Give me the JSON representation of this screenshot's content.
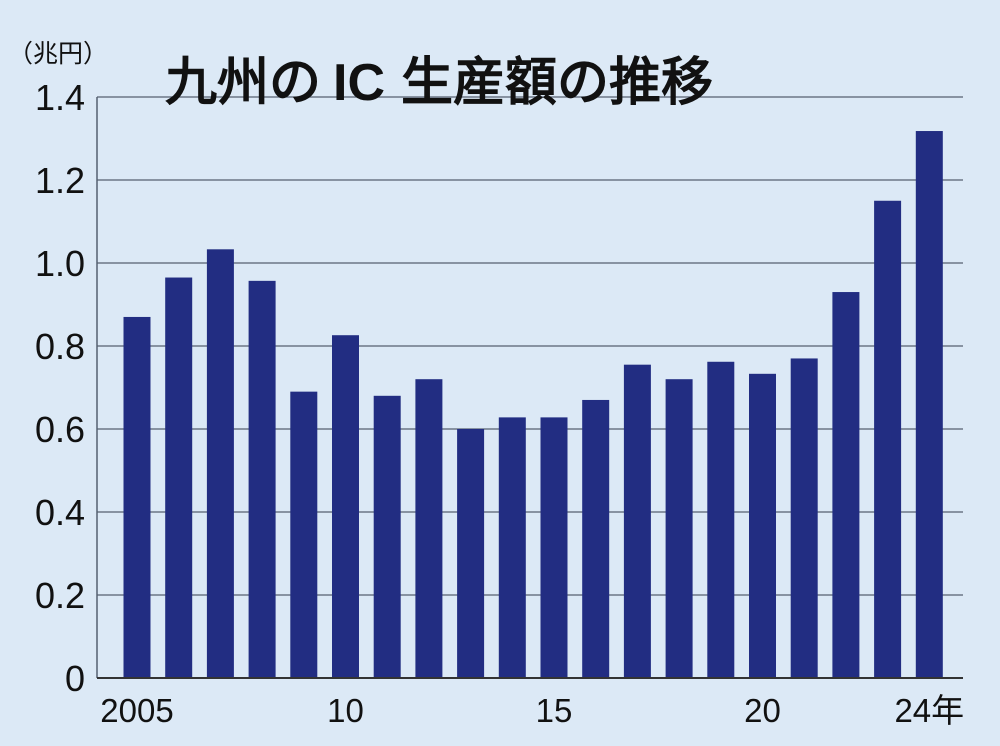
{
  "chart_data": {
    "type": "bar",
    "title": "九州のIC生産額の推移",
    "title_parts": [
      "九州の",
      "IC",
      "生産額の推移"
    ],
    "ylabel": "（兆円）",
    "ylim": [
      0,
      1.4
    ],
    "y_ticks": [
      "0",
      "0.2",
      "0.4",
      "0.6",
      "0.8",
      "1.0",
      "1.2",
      "1.4"
    ],
    "categories": [
      "2005",
      "2006",
      "2007",
      "2008",
      "2009",
      "2010",
      "2011",
      "2012",
      "2013",
      "2014",
      "2015",
      "2016",
      "2017",
      "2018",
      "2019",
      "2020",
      "2021",
      "2022",
      "2023",
      "2024"
    ],
    "x_tick_labels": [
      {
        "category": "2005",
        "label": "2005"
      },
      {
        "category": "2010",
        "label": "10"
      },
      {
        "category": "2015",
        "label": "15"
      },
      {
        "category": "2020",
        "label": "20"
      },
      {
        "category": "2024",
        "label": "24年"
      }
    ],
    "values": [
      0.87,
      0.965,
      1.033,
      0.957,
      0.69,
      0.826,
      0.68,
      0.72,
      0.6,
      0.628,
      0.628,
      0.67,
      0.755,
      0.72,
      0.762,
      0.733,
      0.77,
      0.93,
      1.15,
      1.318
    ],
    "grid": true,
    "colors": {
      "background": "#dce9f6",
      "bar": "#222d82",
      "grid": "#556070",
      "text": "#111111"
    }
  }
}
